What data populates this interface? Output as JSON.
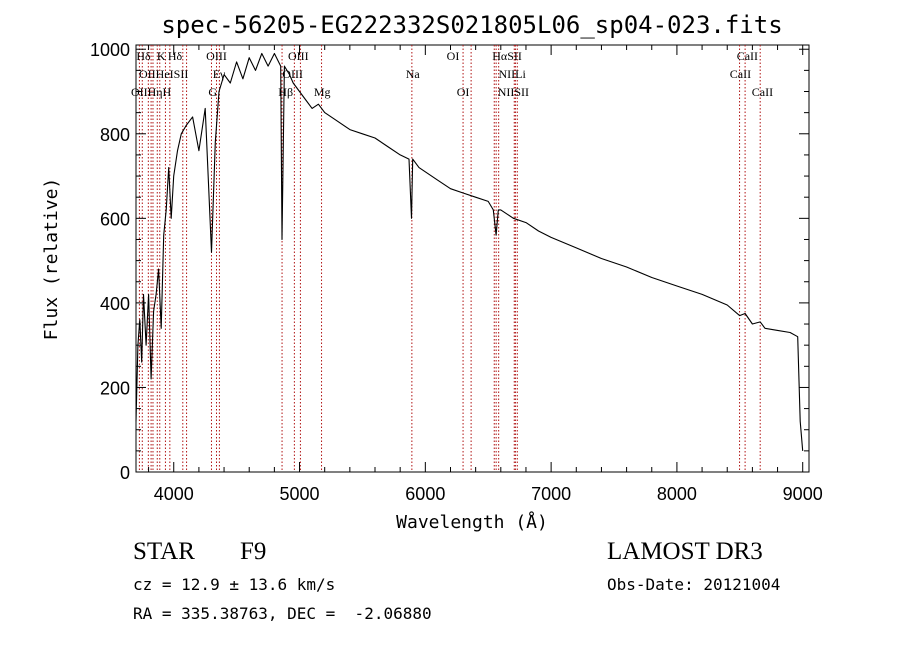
{
  "chart_data": {
    "type": "line",
    "title": "spec-56205-EG222332S021805L06_sp04-023.fits",
    "xlabel": "Wavelength (Å)",
    "ylabel": "Flux (relative)",
    "xlim": [
      3700,
      9050
    ],
    "ylim": [
      0,
      1010
    ],
    "xticks": [
      4000,
      5000,
      6000,
      7000,
      8000,
      9000
    ],
    "yticks": [
      0,
      200,
      400,
      600,
      800,
      1000
    ],
    "grid": false,
    "series": [
      {
        "name": "spectrum",
        "x": [
          3700,
          3715,
          3730,
          3745,
          3760,
          3780,
          3800,
          3820,
          3840,
          3860,
          3880,
          3900,
          3920,
          3940,
          3960,
          3980,
          4000,
          4030,
          4060,
          4100,
          4150,
          4200,
          4250,
          4300,
          4330,
          4360,
          4400,
          4450,
          4500,
          4550,
          4600,
          4650,
          4700,
          4750,
          4800,
          4850,
          4861,
          4880,
          4920,
          4950,
          5000,
          5050,
          5100,
          5150,
          5200,
          5300,
          5400,
          5500,
          5600,
          5700,
          5800,
          5870,
          5890,
          5900,
          5950,
          6000,
          6100,
          6200,
          6300,
          6400,
          6500,
          6540,
          6563,
          6580,
          6600,
          6700,
          6800,
          6900,
          7000,
          7200,
          7400,
          7600,
          7800,
          8000,
          8200,
          8400,
          8498,
          8542,
          8600,
          8662,
          8700,
          8800,
          8900,
          8960,
          8980,
          9000
        ],
        "y": [
          120,
          300,
          360,
          260,
          420,
          300,
          420,
          220,
          380,
          420,
          480,
          340,
          560,
          620,
          720,
          600,
          700,
          760,
          800,
          820,
          840,
          760,
          860,
          520,
          780,
          900,
          940,
          920,
          970,
          930,
          980,
          950,
          990,
          960,
          990,
          960,
          550,
          960,
          940,
          920,
          900,
          880,
          860,
          870,
          850,
          830,
          810,
          800,
          790,
          770,
          750,
          740,
          600,
          740,
          720,
          710,
          690,
          670,
          660,
          650,
          640,
          620,
          560,
          620,
          620,
          600,
          590,
          570,
          555,
          530,
          505,
          485,
          460,
          440,
          420,
          395,
          370,
          375,
          350,
          355,
          340,
          335,
          330,
          320,
          120,
          50
        ]
      }
    ],
    "lines": [
      {
        "wavelength": 3727,
        "label": "OII"
      },
      {
        "wavelength": 3750,
        "label": "OII"
      },
      {
        "wavelength": 3798,
        "label": "Hη"
      },
      {
        "wavelength": 3820,
        "label": "He"
      },
      {
        "wavelength": 3835,
        "label": "Hη"
      },
      {
        "wavelength": 3869,
        "label": "NeIII"
      },
      {
        "wavelength": 3889,
        "label": "Hζ"
      },
      {
        "wavelength": 3934,
        "label": "K"
      },
      {
        "wavelength": 3969,
        "label": "H"
      },
      {
        "wavelength": 4072,
        "label": "SII"
      },
      {
        "wavelength": 4102,
        "label": "Hδ"
      },
      {
        "wavelength": 4300,
        "label": "G"
      },
      {
        "wavelength": 4340,
        "label": "Hγ"
      },
      {
        "wavelength": 4363,
        "label": "OIII"
      },
      {
        "wavelength": 4861,
        "label": "Hβ"
      },
      {
        "wavelength": 4959,
        "label": "OIII"
      },
      {
        "wavelength": 5007,
        "label": "OIII"
      },
      {
        "wavelength": 5175,
        "label": "Mg"
      },
      {
        "wavelength": 5893,
        "label": "Na"
      },
      {
        "wavelength": 6300,
        "label": "OI"
      },
      {
        "wavelength": 6364,
        "label": "OI"
      },
      {
        "wavelength": 6548,
        "label": "NII"
      },
      {
        "wavelength": 6563,
        "label": "Hα"
      },
      {
        "wavelength": 6583,
        "label": "NII"
      },
      {
        "wavelength": 6707,
        "label": "Li"
      },
      {
        "wavelength": 6716,
        "label": "SII"
      },
      {
        "wavelength": 6731,
        "label": "SII"
      },
      {
        "wavelength": 8498,
        "label": "CaII"
      },
      {
        "wavelength": 8542,
        "label": "CaII"
      },
      {
        "wavelength": 8662,
        "label": "CaII"
      }
    ],
    "line_labels": [
      {
        "text": "Hδ",
        "wavelength": 3760,
        "row": 1
      },
      {
        "text": "K",
        "wavelength": 3900,
        "row": 1
      },
      {
        "text": "Hδ",
        "wavelength": 4010,
        "row": 1
      },
      {
        "text": "OIII",
        "wavelength": 4340,
        "row": 1
      },
      {
        "text": "OIII",
        "wavelength": 4990,
        "row": 1
      },
      {
        "text": "OI",
        "wavelength": 6220,
        "row": 1
      },
      {
        "text": "HαSII",
        "wavelength": 6650,
        "row": 1
      },
      {
        "text": "CaII",
        "wavelength": 8560,
        "row": 1
      },
      {
        "text": "OIIHeISII",
        "wavelength": 3920,
        "row": 2
      },
      {
        "text": "Eγ",
        "wavelength": 4360,
        "row": 2
      },
      {
        "text": "OIII",
        "wavelength": 4945,
        "row": 2
      },
      {
        "text": "Na",
        "wavelength": 5900,
        "row": 2
      },
      {
        "text": "NIILi",
        "wavelength": 6690,
        "row": 2
      },
      {
        "text": "CaII",
        "wavelength": 8505,
        "row": 2
      },
      {
        "text": "OIIHηH",
        "wavelength": 3820,
        "row": 3
      },
      {
        "text": "G",
        "wavelength": 4310,
        "row": 3
      },
      {
        "text": "Hβ",
        "wavelength": 4890,
        "row": 3
      },
      {
        "text": "Mg",
        "wavelength": 5180,
        "row": 3
      },
      {
        "text": "OI",
        "wavelength": 6300,
        "row": 3
      },
      {
        "text": "NIISII",
        "wavelength": 6700,
        "row": 3
      },
      {
        "text": "CaII",
        "wavelength": 8680,
        "row": 3
      }
    ]
  },
  "info": {
    "object_type": "STAR",
    "subclass": "F9",
    "survey": "LAMOST DR3",
    "redshift": "cz = 12.9 ± 13.6 km/s",
    "obs_date": "Obs-Date: 20121004",
    "coordinates": "RA = 335.38763, DEC =  -2.06880"
  }
}
